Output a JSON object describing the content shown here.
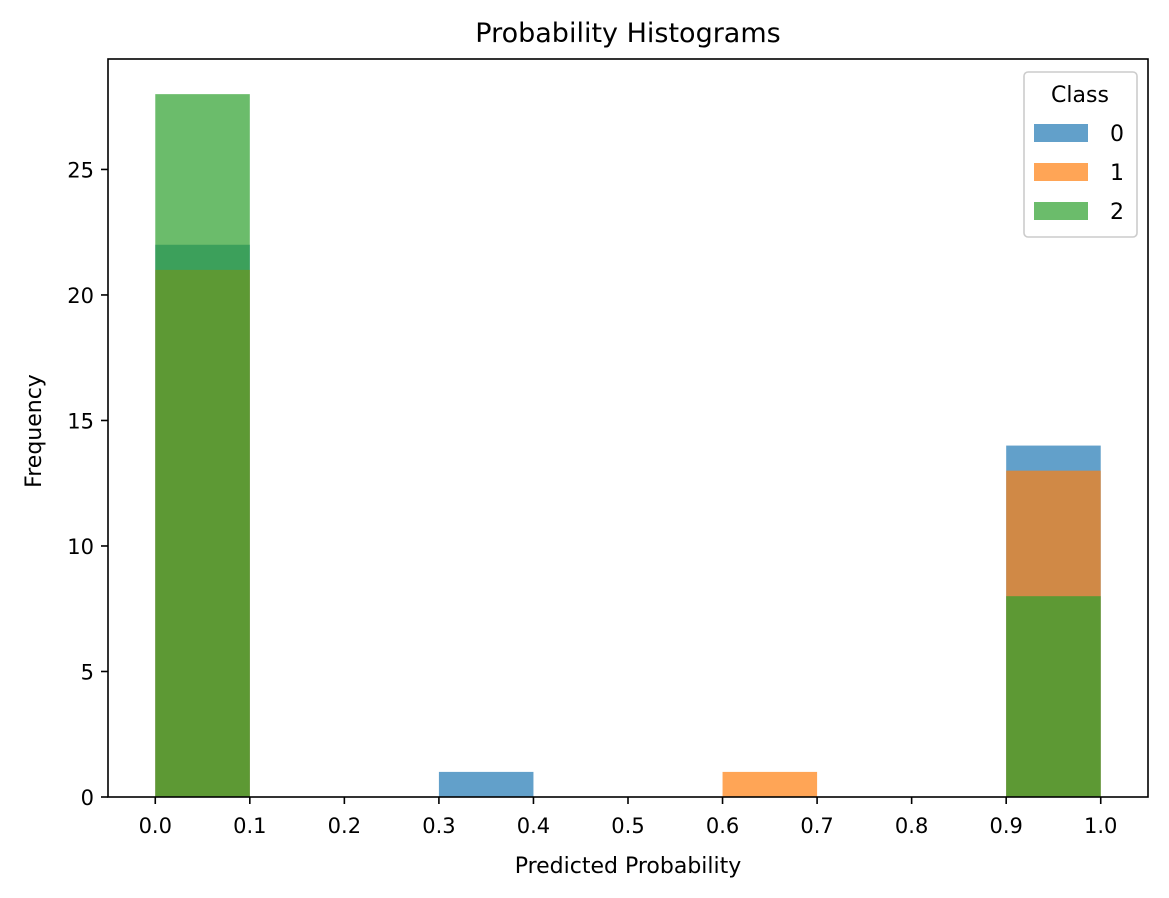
{
  "chart_data": {
    "type": "bar",
    "title": "Probability Histograms",
    "xlabel": "Predicted Probability",
    "ylabel": "Frequency",
    "xlim": [
      -0.05,
      1.05
    ],
    "ylim": [
      0,
      29.4
    ],
    "xticks": [
      "0.0",
      "0.1",
      "0.2",
      "0.3",
      "0.4",
      "0.5",
      "0.6",
      "0.7",
      "0.8",
      "0.9",
      "1.0"
    ],
    "yticks": [
      "0",
      "5",
      "10",
      "15",
      "20",
      "25"
    ],
    "bin_edges": [
      0.0,
      0.1,
      0.2,
      0.3,
      0.4,
      0.5,
      0.6,
      0.7,
      0.8,
      0.9,
      1.0
    ],
    "legend": {
      "title": "Class",
      "position": "top-right"
    },
    "series": [
      {
        "name": "0",
        "color": "#1f77b4",
        "opacity": 0.7,
        "values": [
          22,
          0,
          0,
          1,
          0,
          0,
          0,
          0,
          0,
          14
        ]
      },
      {
        "name": "1",
        "color": "#ff7f0e",
        "opacity": 0.7,
        "values": [
          21,
          0,
          0,
          0,
          0,
          0,
          1,
          0,
          0,
          13
        ]
      },
      {
        "name": "2",
        "color": "#2ca02c",
        "opacity": 0.7,
        "values": [
          28,
          0,
          0,
          0,
          0,
          0,
          0,
          0,
          0,
          8
        ]
      }
    ]
  }
}
